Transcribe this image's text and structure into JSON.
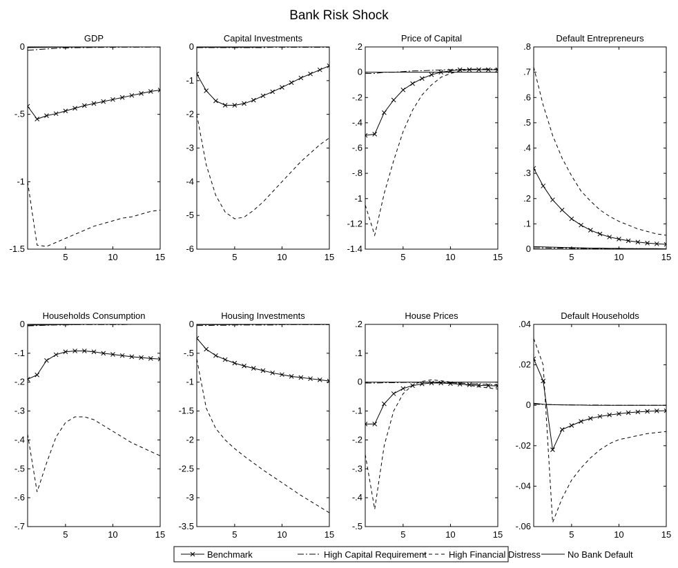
{
  "figure_title": "Bank Risk Shock",
  "legend": [
    {
      "label": "Benchmark",
      "style": "solid-x"
    },
    {
      "label": "High Capital Requirement",
      "style": "dashdot"
    },
    {
      "label": "High Financial Distress",
      "style": "dashed"
    },
    {
      "label": "No Bank Default",
      "style": "solid"
    }
  ],
  "chart_data": [
    {
      "type": "line",
      "title": "GDP",
      "xlim": [
        1,
        15
      ],
      "ylim": [
        -1.5,
        0
      ],
      "xticks": [
        5,
        10,
        15
      ],
      "yticks": [
        -1.5,
        -1,
        -0.5,
        0
      ],
      "x": [
        1,
        2,
        3,
        4,
        5,
        6,
        7,
        8,
        9,
        10,
        11,
        12,
        13,
        14,
        15
      ],
      "series": [
        {
          "name": "Benchmark",
          "values": [
            -0.44,
            -0.535,
            -0.51,
            -0.495,
            -0.475,
            -0.455,
            -0.435,
            -0.42,
            -0.405,
            -0.39,
            -0.375,
            -0.36,
            -0.345,
            -0.33,
            -0.32
          ]
        },
        {
          "name": "High Capital Requirement",
          "values": [
            -0.025,
            -0.02,
            -0.015,
            -0.01,
            -0.008,
            -0.006,
            -0.005,
            -0.004,
            -0.003,
            -0.003,
            -0.002,
            -0.002,
            -0.002,
            -0.001,
            -0.001
          ]
        },
        {
          "name": "High Financial Distress",
          "values": [
            -1.0,
            -1.47,
            -1.48,
            -1.45,
            -1.42,
            -1.39,
            -1.36,
            -1.33,
            -1.31,
            -1.29,
            -1.27,
            -1.26,
            -1.24,
            -1.22,
            -1.21
          ]
        },
        {
          "name": "No Bank Default",
          "values": [
            -0.005,
            -0.004,
            -0.003,
            -0.002,
            -0.002,
            -0.001,
            -0.001,
            -0.001,
            0,
            0,
            0,
            0,
            0,
            0,
            0
          ]
        }
      ]
    },
    {
      "type": "line",
      "title": "Capital Investments",
      "xlim": [
        1,
        15
      ],
      "ylim": [
        -6,
        0
      ],
      "xticks": [
        5,
        10,
        15
      ],
      "yticks": [
        -6,
        -5,
        -4,
        -3,
        -2,
        -1,
        0
      ],
      "x": [
        1,
        2,
        3,
        4,
        5,
        6,
        7,
        8,
        9,
        10,
        11,
        12,
        13,
        14,
        15
      ],
      "series": [
        {
          "name": "Benchmark",
          "values": [
            -0.8,
            -1.3,
            -1.6,
            -1.73,
            -1.73,
            -1.68,
            -1.58,
            -1.45,
            -1.33,
            -1.2,
            -1.06,
            -0.92,
            -0.8,
            -0.68,
            -0.56
          ]
        },
        {
          "name": "High Capital Requirement",
          "values": [
            -0.02,
            -0.02,
            -0.02,
            -0.02,
            -0.02,
            -0.02,
            -0.02,
            -0.02,
            -0.01,
            -0.01,
            -0.01,
            -0.01,
            -0.01,
            -0.01,
            -0.01
          ]
        },
        {
          "name": "High Financial Distress",
          "values": [
            -2.0,
            -3.5,
            -4.4,
            -4.9,
            -5.1,
            -5.05,
            -4.85,
            -4.6,
            -4.3,
            -4.0,
            -3.7,
            -3.4,
            -3.15,
            -2.9,
            -2.7
          ]
        },
        {
          "name": "No Bank Default",
          "values": [
            -0.01,
            -0.01,
            -0.01,
            -0.01,
            -0.01,
            -0.01,
            -0.01,
            0,
            0,
            0,
            0,
            0,
            0,
            0,
            0
          ]
        }
      ]
    },
    {
      "type": "line",
      "title": "Price of Capital",
      "xlim": [
        1,
        15
      ],
      "ylim": [
        -1.4,
        0.2
      ],
      "xticks": [
        5,
        10,
        15
      ],
      "yticks": [
        -1.4,
        -1.2,
        -1,
        -0.8,
        -0.6,
        -0.4,
        -0.2,
        0,
        0.2
      ],
      "x": [
        1,
        2,
        3,
        4,
        5,
        6,
        7,
        8,
        9,
        10,
        11,
        12,
        13,
        14,
        15
      ],
      "series": [
        {
          "name": "Benchmark",
          "values": [
            -0.5,
            -0.49,
            -0.32,
            -0.22,
            -0.14,
            -0.09,
            -0.05,
            -0.02,
            0,
            0.01,
            0.02,
            0.02,
            0.02,
            0.02,
            0.02
          ]
        },
        {
          "name": "High Capital Requirement",
          "values": [
            -0.01,
            -0.01,
            0,
            0,
            0.005,
            0.01,
            0.012,
            0.015,
            0.018,
            0.02,
            0.022,
            0.024,
            0.025,
            0.025,
            0.025
          ]
        },
        {
          "name": "High Financial Distress",
          "values": [
            -1.05,
            -1.29,
            -0.96,
            -0.7,
            -0.47,
            -0.3,
            -0.18,
            -0.1,
            -0.04,
            -0.01,
            0.01,
            0.02,
            0.02,
            0.02,
            0.02
          ]
        },
        {
          "name": "No Bank Default",
          "values": [
            0,
            0,
            0,
            0,
            0,
            0,
            0,
            0,
            0,
            0,
            0,
            0,
            0,
            0,
            0
          ]
        }
      ]
    },
    {
      "type": "line",
      "title": "Default Entrepreneurs",
      "xlim": [
        1,
        15
      ],
      "ylim": [
        0,
        0.8
      ],
      "xticks": [
        5,
        10,
        15
      ],
      "yticks": [
        0,
        0.1,
        0.2,
        0.3,
        0.4,
        0.5,
        0.6,
        0.7,
        0.8
      ],
      "x": [
        1,
        2,
        3,
        4,
        5,
        6,
        7,
        8,
        9,
        10,
        11,
        12,
        13,
        14,
        15
      ],
      "series": [
        {
          "name": "Benchmark",
          "values": [
            0.32,
            0.25,
            0.195,
            0.155,
            0.12,
            0.095,
            0.075,
            0.06,
            0.048,
            0.04,
            0.033,
            0.028,
            0.024,
            0.021,
            0.019
          ]
        },
        {
          "name": "High Capital Requirement",
          "values": [
            0.005,
            0.005,
            0.004,
            0.004,
            0.003,
            0.003,
            0.003,
            0.002,
            0.002,
            0.002,
            0.002,
            0.002,
            0.001,
            0.001,
            0.001
          ]
        },
        {
          "name": "High Financial Distress",
          "values": [
            0.72,
            0.57,
            0.45,
            0.36,
            0.29,
            0.23,
            0.19,
            0.155,
            0.13,
            0.11,
            0.095,
            0.08,
            0.07,
            0.06,
            0.055
          ]
        },
        {
          "name": "No Bank Default",
          "values": [
            0.01,
            0.009,
            0.008,
            0.007,
            0.006,
            0.005,
            0.004,
            0.004,
            0.003,
            0.003,
            0.002,
            0.002,
            0.002,
            0.002,
            0.001
          ]
        }
      ]
    },
    {
      "type": "line",
      "title": "Households Consumption",
      "xlim": [
        1,
        15
      ],
      "ylim": [
        -0.7,
        0
      ],
      "xticks": [
        5,
        10,
        15
      ],
      "yticks": [
        -0.7,
        -0.6,
        -0.5,
        -0.4,
        -0.3,
        -0.2,
        -0.1,
        0
      ],
      "x": [
        1,
        2,
        3,
        4,
        5,
        6,
        7,
        8,
        9,
        10,
        11,
        12,
        13,
        14,
        15
      ],
      "series": [
        {
          "name": "Benchmark",
          "values": [
            -0.19,
            -0.175,
            -0.125,
            -0.105,
            -0.095,
            -0.092,
            -0.092,
            -0.095,
            -0.1,
            -0.104,
            -0.108,
            -0.112,
            -0.115,
            -0.118,
            -0.12
          ]
        },
        {
          "name": "High Capital Requirement",
          "values": [
            -0.005,
            -0.004,
            -0.003,
            -0.002,
            -0.002,
            -0.001,
            -0.001,
            -0.001,
            -0.001,
            -0.001,
            -0.001,
            0,
            0,
            0,
            0
          ]
        },
        {
          "name": "High Financial Distress",
          "values": [
            -0.38,
            -0.58,
            -0.48,
            -0.39,
            -0.34,
            -0.32,
            -0.32,
            -0.33,
            -0.35,
            -0.37,
            -0.39,
            -0.41,
            -0.425,
            -0.44,
            -0.455
          ]
        },
        {
          "name": "No Bank Default",
          "values": [
            -0.003,
            -0.002,
            -0.002,
            -0.001,
            -0.001,
            -0.001,
            0,
            0,
            0,
            0,
            0,
            0,
            0,
            0,
            0
          ]
        }
      ]
    },
    {
      "type": "line",
      "title": "Housing Investments",
      "xlim": [
        1,
        15
      ],
      "ylim": [
        -3.5,
        0
      ],
      "xticks": [
        5,
        10,
        15
      ],
      "yticks": [
        -3.5,
        -3,
        -2.5,
        -2,
        -1.5,
        -1,
        -0.5,
        0
      ],
      "x": [
        1,
        2,
        3,
        4,
        5,
        6,
        7,
        8,
        9,
        10,
        11,
        12,
        13,
        14,
        15
      ],
      "series": [
        {
          "name": "Benchmark",
          "values": [
            -0.24,
            -0.43,
            -0.54,
            -0.61,
            -0.67,
            -0.72,
            -0.76,
            -0.8,
            -0.84,
            -0.87,
            -0.9,
            -0.92,
            -0.94,
            -0.96,
            -0.98
          ]
        },
        {
          "name": "High Capital Requirement",
          "values": [
            -0.02,
            -0.02,
            -0.015,
            -0.015,
            -0.01,
            -0.01,
            -0.01,
            -0.01,
            -0.01,
            -0.005,
            -0.005,
            -0.005,
            -0.005,
            -0.005,
            -0.005
          ]
        },
        {
          "name": "High Financial Distress",
          "values": [
            -0.6,
            -1.45,
            -1.8,
            -2.0,
            -2.15,
            -2.28,
            -2.4,
            -2.52,
            -2.63,
            -2.74,
            -2.85,
            -2.96,
            -3.06,
            -3.16,
            -3.26
          ]
        },
        {
          "name": "No Bank Default",
          "values": [
            -0.005,
            -0.005,
            -0.004,
            -0.004,
            -0.003,
            -0.003,
            -0.002,
            -0.002,
            -0.002,
            -0.001,
            -0.001,
            -0.001,
            -0.001,
            -0.001,
            -0.001
          ]
        }
      ]
    },
    {
      "type": "line",
      "title": "House Prices",
      "xlim": [
        1,
        15
      ],
      "ylim": [
        -0.5,
        0.2
      ],
      "xticks": [
        5,
        10,
        15
      ],
      "yticks": [
        -0.5,
        -0.4,
        -0.3,
        -0.2,
        -0.1,
        0,
        0.1,
        0.2
      ],
      "x": [
        1,
        2,
        3,
        4,
        5,
        6,
        7,
        8,
        9,
        10,
        11,
        12,
        13,
        14,
        15
      ],
      "series": [
        {
          "name": "Benchmark",
          "values": [
            -0.145,
            -0.145,
            -0.075,
            -0.04,
            -0.022,
            -0.012,
            -0.006,
            -0.003,
            -0.003,
            -0.005,
            -0.007,
            -0.009,
            -0.011,
            -0.012,
            -0.013
          ]
        },
        {
          "name": "High Capital Requirement",
          "values": [
            -0.003,
            -0.003,
            -0.002,
            -0.002,
            -0.001,
            -0.001,
            0,
            0,
            -0.001,
            -0.002,
            -0.003,
            -0.005,
            -0.007,
            -0.008,
            -0.01
          ]
        },
        {
          "name": "High Financial Distress",
          "values": [
            -0.25,
            -0.44,
            -0.22,
            -0.1,
            -0.04,
            -0.01,
            0.003,
            0.008,
            0.005,
            0.0,
            -0.006,
            -0.011,
            -0.016,
            -0.02,
            -0.024
          ]
        },
        {
          "name": "No Bank Default",
          "values": [
            0,
            0,
            0,
            0,
            0,
            0,
            0,
            0,
            0,
            0,
            0,
            0,
            0,
            0,
            0
          ]
        }
      ]
    },
    {
      "type": "line",
      "title": "Default Households",
      "xlim": [
        1,
        15
      ],
      "ylim": [
        -0.06,
        0.04
      ],
      "xticks": [
        5,
        10,
        15
      ],
      "yticks": [
        -0.06,
        -0.04,
        -0.02,
        0,
        0.02,
        0.04
      ],
      "x": [
        1,
        2,
        3,
        4,
        5,
        6,
        7,
        8,
        9,
        10,
        11,
        12,
        13,
        14,
        15
      ],
      "series": [
        {
          "name": "Benchmark",
          "values": [
            0.023,
            0.012,
            -0.022,
            -0.012,
            -0.01,
            -0.008,
            -0.0065,
            -0.0055,
            -0.0048,
            -0.0042,
            -0.0037,
            -0.0033,
            -0.003,
            -0.0028,
            -0.0027
          ]
        },
        {
          "name": "High Capital Requirement",
          "values": [
            0.0005,
            0.0004,
            0.0003,
            0.0002,
            0.0002,
            0.0001,
            0.0001,
            0.0001,
            0,
            0,
            0,
            0,
            0,
            0,
            0
          ]
        },
        {
          "name": "High Financial Distress",
          "values": [
            0.033,
            0.02,
            -0.058,
            -0.046,
            -0.037,
            -0.031,
            -0.026,
            -0.022,
            -0.019,
            -0.017,
            -0.016,
            -0.015,
            -0.014,
            -0.0135,
            -0.013
          ]
        },
        {
          "name": "No Bank Default",
          "values": [
            0.001,
            0.0005,
            0.0003,
            0.0002,
            0.0001,
            0.0001,
            0,
            0,
            0,
            0,
            0,
            0,
            0,
            0,
            0
          ]
        }
      ]
    }
  ]
}
